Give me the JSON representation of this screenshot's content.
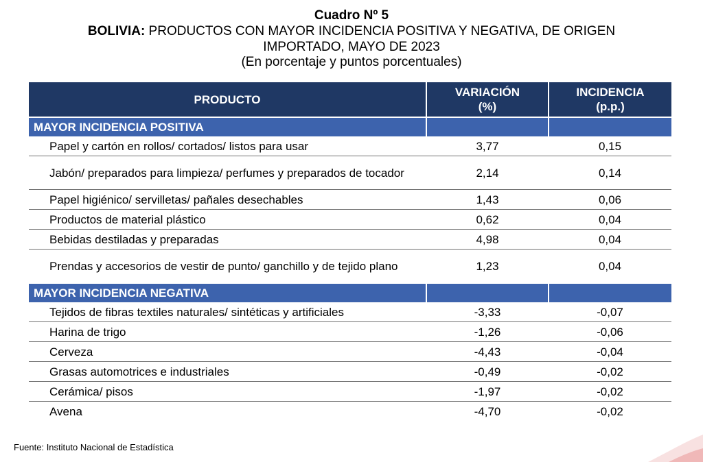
{
  "title": "Cuadro Nº 5",
  "subtitle_prefix": "BOLIVIA:",
  "subtitle_rest": " PRODUCTOS CON MAYOR INCIDENCIA POSITIVA Y NEGATIVA, DE ORIGEN",
  "subtitle_line2": "IMPORTADO, MAYO DE 2023",
  "units_note": "(En porcentaje y puntos porcentuales)",
  "header": {
    "product": "PRODUCTO",
    "variation": "VARIACIÓN",
    "variation_unit": "(%)",
    "incidence": "INCIDENCIA",
    "incidence_unit": "(p.p.)"
  },
  "positive": {
    "label": "MAYOR INCIDENCIA POSITIVA",
    "rows": [
      {
        "product": "Papel y cartón en rollos/ cortados/ listos para usar",
        "variation": "3,77",
        "incidence": "0,15"
      },
      {
        "product": "Jabón/ preparados para limpieza/ perfumes y preparados de tocador",
        "variation": "2,14",
        "incidence": "0,14"
      },
      {
        "product": "Papel higiénico/ servilletas/ pañales desechables",
        "variation": "1,43",
        "incidence": "0,06"
      },
      {
        "product": "Productos de material plástico",
        "variation": "0,62",
        "incidence": "0,04"
      },
      {
        "product": "Bebidas destiladas y preparadas",
        "variation": "4,98",
        "incidence": "0,04"
      },
      {
        "product": "Prendas y accesorios de vestir de punto/ ganchillo y de tejido plano",
        "variation": "1,23",
        "incidence": "0,04"
      }
    ]
  },
  "negative": {
    "label": "MAYOR INCIDENCIA NEGATIVA",
    "rows": [
      {
        "product": "Tejidos de fibras textiles naturales/ sintéticas y artificiales",
        "variation": "-3,33",
        "incidence": "-0,07"
      },
      {
        "product": "Harina de trigo",
        "variation": "-1,26",
        "incidence": "-0,06"
      },
      {
        "product": "Cerveza",
        "variation": "-4,43",
        "incidence": "-0,04"
      },
      {
        "product": "Grasas automotrices e industriales",
        "variation": "-0,49",
        "incidence": "-0,02"
      },
      {
        "product": "Cerámica/ pisos",
        "variation": "-1,97",
        "incidence": "-0,02"
      },
      {
        "product": "Avena",
        "variation": "-4,70",
        "incidence": "-0,02"
      }
    ]
  },
  "source": "Fuente: Instituto Nacional de Estadística",
  "colors": {
    "header_bg": "#1f3864",
    "section_bg": "#3d63ad",
    "accent_red": "#c00000"
  }
}
